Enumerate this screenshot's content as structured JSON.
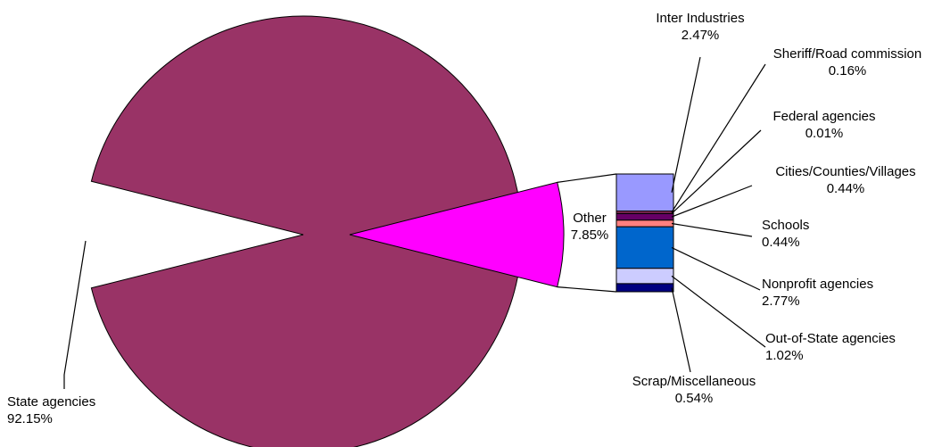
{
  "chart_data": {
    "type": "pie",
    "title": "",
    "main_slices": [
      {
        "label": "State agencies",
        "value": 92.15,
        "value_text": "92.15%",
        "color": "#993366"
      },
      {
        "label": "Other",
        "value": 7.85,
        "value_text": "7.85%",
        "color": "#ff00ff"
      }
    ],
    "breakdown_of": "Other",
    "breakdown": [
      {
        "label": "Inter Industries",
        "value": 2.47,
        "value_text": "2.47%",
        "color": "#9999ff"
      },
      {
        "label": "Sheriff/Road commission",
        "value": 0.16,
        "value_text": "0.16%",
        "color": "#993366"
      },
      {
        "label": "Federal agencies",
        "value": 0.01,
        "value_text": "0.01%",
        "color": "#ffffcc"
      },
      {
        "label": "Cities/Counties/Villages",
        "value": 0.44,
        "value_text": "0.44%",
        "color": "#660066"
      },
      {
        "label": "Schools",
        "value": 0.44,
        "value_text": "0.44%",
        "color": "#ff8080"
      },
      {
        "label": "Nonprofit agencies",
        "value": 2.77,
        "value_text": "2.77%",
        "color": "#0066cc"
      },
      {
        "label": "Out-of-State agencies",
        "value": 1.02,
        "value_text": "1.02%",
        "color": "#ccccff"
      },
      {
        "label": "Scrap/Miscellaneous",
        "value": 0.54,
        "value_text": "0.54%",
        "color": "#000080"
      }
    ]
  }
}
